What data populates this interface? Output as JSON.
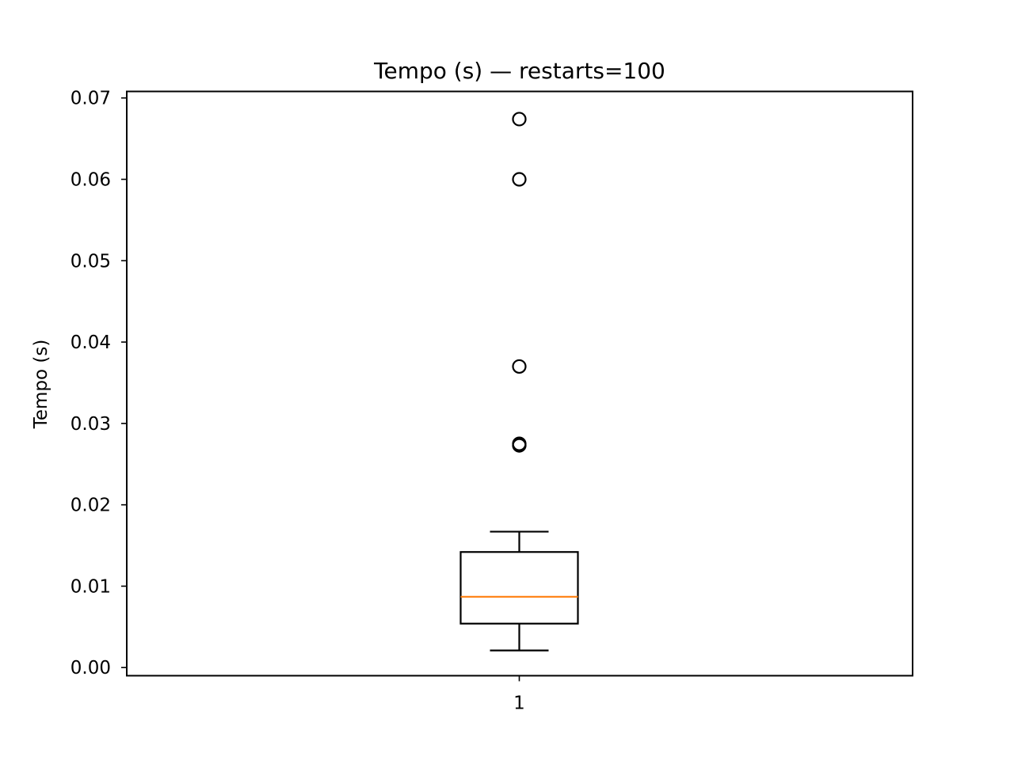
{
  "chart_data": {
    "type": "box",
    "title": "Tempo (s) — restarts=100",
    "xlabel": "",
    "ylabel": "Tempo (s)",
    "ylim": [
      -0.001,
      0.0708
    ],
    "y_ticks": [
      0.0,
      0.01,
      0.02,
      0.03,
      0.04,
      0.05,
      0.06,
      0.07
    ],
    "y_tick_labels": [
      "0.00",
      "0.01",
      "0.02",
      "0.03",
      "0.04",
      "0.05",
      "0.06",
      "0.07"
    ],
    "categories": [
      "1"
    ],
    "grid": false,
    "boxes": [
      {
        "category": "1",
        "whisker_low": 0.0021,
        "q1": 0.0054,
        "median": 0.0087,
        "q3": 0.0142,
        "whisker_high": 0.0167,
        "outliers": [
          0.0273,
          0.0275,
          0.037,
          0.06,
          0.0674
        ]
      }
    ],
    "colors": {
      "box": "#000000",
      "median": "#ff7f0e",
      "outlier": "#000000"
    }
  }
}
